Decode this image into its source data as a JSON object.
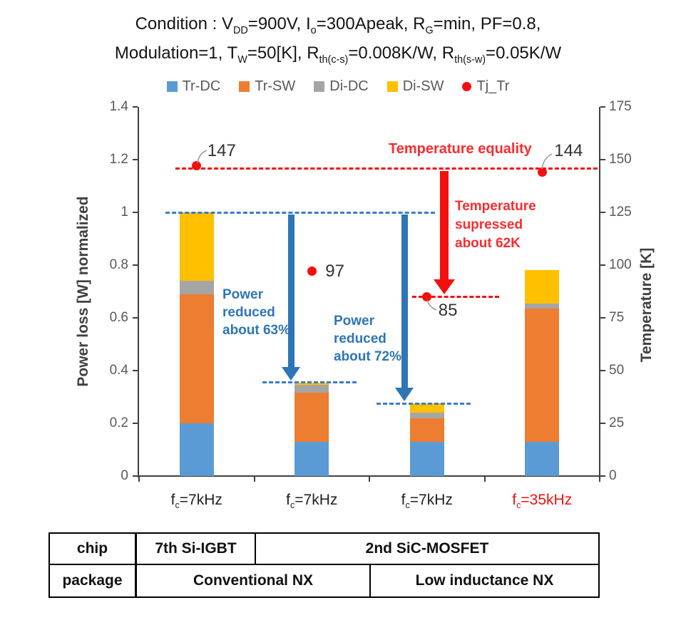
{
  "condition": {
    "line1_runs": [
      {
        "t": "Condition : V"
      },
      {
        "t": "DD",
        "sub": true
      },
      {
        "t": "=900V, I"
      },
      {
        "t": "o",
        "sub": true
      },
      {
        "t": "=300Apeak, R"
      },
      {
        "t": "G",
        "sub": true
      },
      {
        "t": "=min, PF=0.8,"
      }
    ],
    "line2_runs": [
      {
        "t": "Modulation=1, T"
      },
      {
        "t": "W",
        "sub": true
      },
      {
        "t": "=50[K], R"
      },
      {
        "t": "th(c-s)",
        "sub": true
      },
      {
        "t": "=0.008K/W, R"
      },
      {
        "t": "th(s-w)",
        "sub": true
      },
      {
        "t": "=0.05K/W"
      }
    ]
  },
  "colors": {
    "tr_dc": "#5B9BD5",
    "tr_sw": "#ED7D31",
    "di_dc": "#A5A5A5",
    "di_sw": "#FFC000",
    "red": "#F40F0F",
    "red_text": "#FB2C2F",
    "blue_arrow": "#2E75B6",
    "blue_dash": "#3A7DC9",
    "axis": "#404040"
  },
  "chart_data": {
    "type": "bar",
    "stacked": true,
    "grid": false,
    "legend_position": "top",
    "categories": [
      {
        "pre": "f",
        "sub": "c",
        "post": "=7kHz",
        "color": "#1f1f1f"
      },
      {
        "pre": "f",
        "sub": "c",
        "post": "=7kHz",
        "color": "#1f1f1f"
      },
      {
        "pre": "f",
        "sub": "c",
        "post": "=7kHz",
        "color": "#1f1f1f"
      },
      {
        "pre": "f",
        "sub": "c",
        "post": "=35kHz",
        "color": "#F40F0F"
      }
    ],
    "series": [
      {
        "name": "Tr-DC",
        "color": "#5B9BD5",
        "values": [
          0.2,
          0.13,
          0.13,
          0.13
        ]
      },
      {
        "name": "Tr-SW",
        "color": "#ED7D31",
        "values": [
          0.49,
          0.185,
          0.09,
          0.505
        ]
      },
      {
        "name": "Di-DC",
        "color": "#A5A5A5",
        "values": [
          0.05,
          0.03,
          0.02,
          0.02
        ]
      },
      {
        "name": "Di-SW",
        "color": "#FFC000",
        "values": [
          0.26,
          0.01,
          0.035,
          0.125
        ]
      }
    ],
    "bar_totals": [
      1.0,
      0.355,
      0.275,
      0.78
    ],
    "point_series": {
      "name": "Tj_Tr",
      "color": "#F40F0F",
      "values": [
        147,
        97,
        85,
        144
      ],
      "labels": [
        "147",
        "97",
        "85",
        "144"
      ]
    },
    "left_axis": {
      "label": "Power loss [W] normalized",
      "min": 0,
      "max": 1.4,
      "ticks": [
        "0",
        "0.2",
        "0.4",
        "0.6",
        "0.8",
        "1",
        "1.2",
        "1.4"
      ]
    },
    "right_axis": {
      "label": "Temperature [K]",
      "min": 0,
      "max": 175,
      "ticks": [
        "0",
        "25",
        "50",
        "75",
        "100",
        "125",
        "150",
        "175"
      ]
    }
  },
  "legend": {
    "items": [
      {
        "label": "Tr-DC",
        "color": "#5B9BD5",
        "marker": "square"
      },
      {
        "label": "Tr-SW",
        "color": "#ED7D31",
        "marker": "square"
      },
      {
        "label": "Di-DC",
        "color": "#A5A5A5",
        "marker": "square"
      },
      {
        "label": "Di-SW",
        "color": "#FFC000",
        "marker": "square"
      },
      {
        "label": "Tj_Tr",
        "color": "#F40F0F",
        "marker": "circle"
      }
    ]
  },
  "annotations": {
    "power_reduced_63": {
      "lines": [
        "Power",
        "reduced",
        "about 63%"
      ],
      "color": "#2E75B6"
    },
    "power_reduced_72": {
      "lines": [
        "Power",
        "reduced",
        "about 72%"
      ],
      "color": "#2E75B6"
    },
    "temperature_equality": {
      "text": "Temperature equality",
      "color": "#FB2C2F"
    },
    "temperature_suppressed": {
      "lines": [
        "Temperature",
        "supressed",
        "about 62K"
      ],
      "color": "#FB2C2F"
    }
  },
  "table": {
    "rows": [
      {
        "header": "chip",
        "cells": [
          {
            "text": "7th Si-IGBT"
          },
          {
            "text": "2nd SiC-MOSFET"
          }
        ]
      },
      {
        "header": "package",
        "cells": [
          {
            "text": "Conventional NX"
          },
          {
            "text": "Low inductance NX"
          }
        ]
      }
    ]
  }
}
